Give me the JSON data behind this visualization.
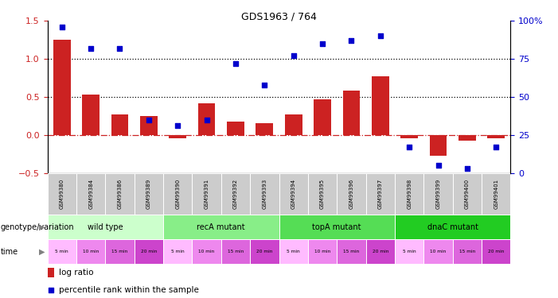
{
  "title": "GDS1963 / 764",
  "samples": [
    "GSM99380",
    "GSM99384",
    "GSM99386",
    "GSM99389",
    "GSM99390",
    "GSM99391",
    "GSM99392",
    "GSM99393",
    "GSM99394",
    "GSM99395",
    "GSM99396",
    "GSM99397",
    "GSM99398",
    "GSM99399",
    "GSM99400",
    "GSM99401"
  ],
  "log_ratio": [
    1.25,
    0.53,
    0.27,
    0.25,
    -0.05,
    0.42,
    0.17,
    0.15,
    0.27,
    0.47,
    0.58,
    0.77,
    -0.05,
    -0.27,
    -0.08,
    -0.05
  ],
  "percentile": [
    96,
    82,
    82,
    35,
    31,
    35,
    72,
    58,
    77,
    85,
    87,
    90,
    17,
    5,
    3,
    17
  ],
  "left_ylim": [
    -0.5,
    1.5
  ],
  "right_ylim": [
    0,
    100
  ],
  "left_yticks": [
    -0.5,
    0.0,
    0.5,
    1.0,
    1.5
  ],
  "right_yticks": [
    0,
    25,
    50,
    75,
    100
  ],
  "right_yticklabels": [
    "0",
    "25",
    "50",
    "75",
    "100%"
  ],
  "hlines": [
    0.5,
    1.0
  ],
  "bar_color": "#cc2222",
  "scatter_color": "#0000cc",
  "zero_line_color": "#cc2222",
  "groups": [
    {
      "label": "wild type",
      "start": 0,
      "end": 4,
      "color": "#ccffcc"
    },
    {
      "label": "recA mutant",
      "start": 4,
      "end": 8,
      "color": "#88ee88"
    },
    {
      "label": "topA mutant",
      "start": 8,
      "end": 12,
      "color": "#55dd55"
    },
    {
      "label": "dnaC mutant",
      "start": 12,
      "end": 16,
      "color": "#22cc22"
    }
  ],
  "time_labels": [
    "5 min",
    "10 min",
    "15 min",
    "20 min",
    "5 min",
    "10 min",
    "15 min",
    "20 min",
    "5 min",
    "10 min",
    "15 min",
    "20 min",
    "5 min",
    "10 min",
    "15 min",
    "20 min"
  ],
  "time_colors": [
    "#ffaaff",
    "#ee88ee",
    "#ee88ee",
    "#cc55cc",
    "#ffaaff",
    "#ee88ee",
    "#ee88ee",
    "#cc55cc",
    "#ffaaff",
    "#ee88ee",
    "#ee88ee",
    "#cc55cc",
    "#ffaaff",
    "#ee88ee",
    "#ee88ee",
    "#cc55cc"
  ],
  "label_geno": "genotype/variation",
  "label_time": "time",
  "legend_bar": "log ratio",
  "legend_scatter": "percentile rank within the sample",
  "bg_color": "#ffffff",
  "tick_label_color_left": "#cc2222",
  "tick_label_color_right": "#0000cc",
  "sample_bg_color": "#cccccc"
}
